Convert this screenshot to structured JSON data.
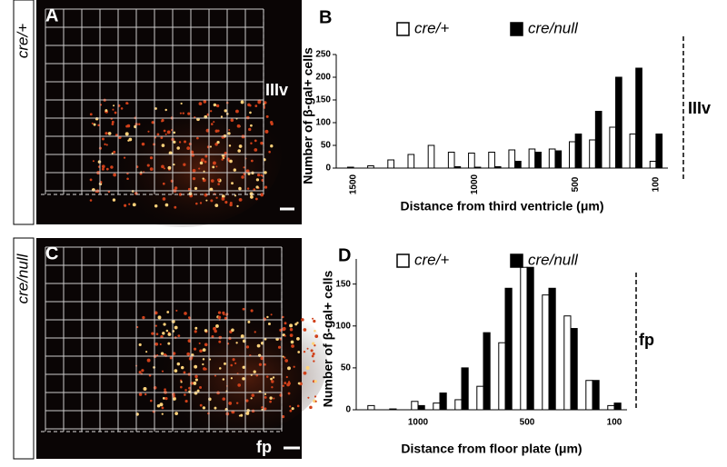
{
  "image_panels": [
    {
      "letter": "A",
      "side_label": "cre/+",
      "marker": "IIIv"
    },
    {
      "letter": "C",
      "side_label": "cre/null",
      "marker": "fp"
    }
  ],
  "chart_data": [
    {
      "type": "bar",
      "panel": "B",
      "marker": "IIIv",
      "xlabel": "Distance from third ventricle (μm)",
      "ylabel": "Number of β-gal+ cells",
      "categories": [
        "1500",
        null,
        null,
        null,
        null,
        null,
        "1000",
        null,
        null,
        null,
        null,
        "500",
        null,
        null,
        null,
        "100"
      ],
      "series": [
        {
          "name": "cre/+",
          "color": "#ffffff",
          "values": [
            2,
            5,
            18,
            30,
            50,
            35,
            33,
            35,
            40,
            42,
            42,
            58,
            62,
            90,
            75,
            15
          ]
        },
        {
          "name": "cre/null",
          "color": "#000000",
          "values": [
            0,
            0,
            0,
            0,
            0,
            3,
            2,
            3,
            15,
            35,
            38,
            75,
            125,
            200,
            220,
            75
          ]
        }
      ],
      "ylim": [
        0,
        250
      ],
      "yticks": [
        0,
        50,
        100,
        150,
        200,
        250
      ]
    },
    {
      "type": "bar",
      "panel": "D",
      "marker": "fp",
      "xlabel": "Distance from floor plate (μm)",
      "ylabel": "Number of β-gal+ cells",
      "categories": [
        null,
        null,
        "1000",
        null,
        null,
        null,
        null,
        "500",
        null,
        null,
        null,
        "100"
      ],
      "series": [
        {
          "name": "cre/+",
          "color": "#ffffff",
          "values": [
            5,
            1,
            10,
            8,
            12,
            28,
            80,
            170,
            137,
            112,
            35,
            5
          ]
        },
        {
          "name": "cre/null",
          "color": "#000000",
          "values": [
            0,
            0,
            5,
            20,
            50,
            92,
            145,
            170,
            145,
            97,
            35,
            8
          ]
        }
      ],
      "ylim": [
        0,
        180
      ],
      "yticks": [
        0,
        50,
        100,
        150
      ]
    }
  ]
}
